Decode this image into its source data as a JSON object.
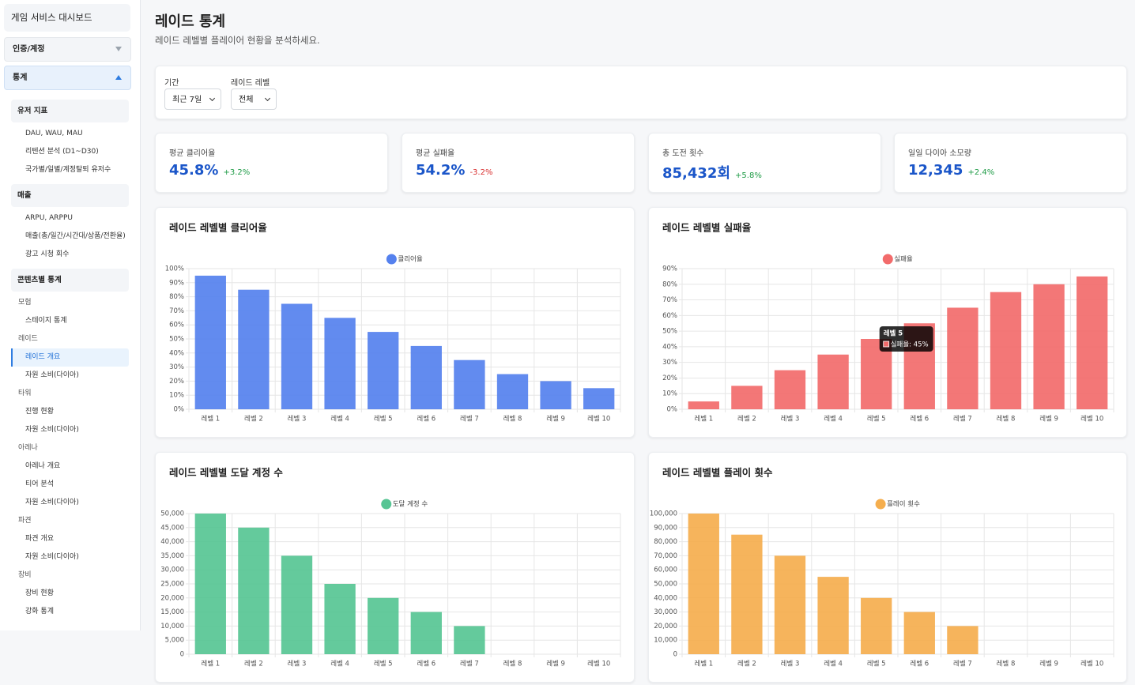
{
  "sidebar": {
    "title": "게임 서비스 대시보드",
    "sections": [
      {
        "label": "인증/계정"
      },
      {
        "label": "통계",
        "groups": [
          {
            "label": "유저 지표",
            "items": [
              {
                "label": "DAU, WAU, MAU"
              },
              {
                "label": "리텐션 분석 (D1~D30)"
              },
              {
                "label": "국가별/일별/계정탈퇴 유저수"
              }
            ]
          },
          {
            "label": "매출",
            "items": [
              {
                "label": "ARPU, ARPPU"
              },
              {
                "label": "매출(총/일간/시간대/상품/전환율)"
              },
              {
                "label": "광고 시청 회수"
              }
            ]
          },
          {
            "label": "콘텐츠별 통계",
            "subgroups": [
              {
                "label": "모험",
                "items": [
                  {
                    "label": "스테이지 통계"
                  }
                ]
              },
              {
                "label": "레이드",
                "items": [
                  {
                    "label": "레이드 개요",
                    "selected": true
                  },
                  {
                    "label": "자원 소비(다이아)"
                  }
                ]
              },
              {
                "label": "타워",
                "items": [
                  {
                    "label": "진행 현황"
                  },
                  {
                    "label": "자원 소비(다이아)"
                  }
                ]
              },
              {
                "label": "아레나",
                "items": [
                  {
                    "label": "아레나 개요"
                  },
                  {
                    "label": "티어 분석"
                  },
                  {
                    "label": "자원 소비(다이아)"
                  }
                ]
              },
              {
                "label": "파견",
                "items": [
                  {
                    "label": "파견 개요"
                  },
                  {
                    "label": "자원 소비(다이아)"
                  }
                ]
              },
              {
                "label": "장비",
                "items": [
                  {
                    "label": "장비 현황"
                  },
                  {
                    "label": "강화 통계"
                  }
                ]
              }
            ]
          }
        ]
      }
    ]
  },
  "header": {
    "title": "레이드 통계",
    "subtitle": "레이드 레벨별 플레이어 현황을 분석하세요."
  },
  "filters": [
    {
      "label": "기간",
      "value": "최근 7일"
    },
    {
      "label": "레이드 레벨",
      "value": "전체"
    }
  ],
  "kpis": [
    {
      "label": "평균 클리어율",
      "value": "45.8%",
      "change": "+3.2%"
    },
    {
      "label": "평균 실패율",
      "value": "54.2%",
      "change": "-3.2%"
    },
    {
      "label": "총 도전 횟수",
      "value": "85,432회",
      "change": "+5.8%"
    },
    {
      "label": "일일 다이아 소모량",
      "value": "12,345",
      "change": "+2.4%"
    }
  ],
  "chart_data": [
    {
      "type": "bar",
      "title": "레이드 레벨별 클리어율",
      "categories": [
        "레벨 1",
        "레벨 2",
        "레벨 3",
        "레벨 4",
        "레벨 5",
        "레벨 6",
        "레벨 7",
        "레벨 8",
        "레벨 9",
        "레벨 10"
      ],
      "series": [
        {
          "name": "클리어율",
          "color": "#5581ee",
          "values": [
            95,
            85,
            75,
            65,
            55,
            45,
            35,
            25,
            20,
            15
          ]
        }
      ],
      "ylim": [
        0,
        100
      ],
      "yticks": [
        {
          "value": 0,
          "label": "0%"
        },
        {
          "value": 10,
          "label": "10%"
        },
        {
          "value": 20,
          "label": "20%"
        },
        {
          "value": 30,
          "label": "30%"
        },
        {
          "value": 40,
          "label": "40%"
        },
        {
          "value": 50,
          "label": "50%"
        },
        {
          "value": 60,
          "label": "60%"
        },
        {
          "value": 70,
          "label": "70%"
        },
        {
          "value": 80,
          "label": "80%"
        },
        {
          "value": 90,
          "label": "90%"
        },
        {
          "value": 100,
          "label": "100%"
        }
      ],
      "grid": true,
      "legend": "top"
    },
    {
      "type": "bar",
      "title": "레이드 레벨별 실패율",
      "categories": [
        "레벨 1",
        "레벨 2",
        "레벨 3",
        "레벨 4",
        "레벨 5",
        "레벨 6",
        "레벨 7",
        "레벨 8",
        "레벨 9",
        "레벨 10"
      ],
      "series": [
        {
          "name": "실패율",
          "color": "#f26b6b",
          "values": [
            5,
            15,
            25,
            35,
            45,
            55,
            65,
            75,
            80,
            85
          ]
        }
      ],
      "ylim": [
        0,
        90
      ],
      "yticks": [
        {
          "value": 0,
          "label": "0%"
        },
        {
          "value": 10,
          "label": "10%"
        },
        {
          "value": 20,
          "label": "20%"
        },
        {
          "value": 30,
          "label": "30%"
        },
        {
          "value": 40,
          "label": "40%"
        },
        {
          "value": 50,
          "label": "50%"
        },
        {
          "value": 60,
          "label": "60%"
        },
        {
          "value": 70,
          "label": "70%"
        },
        {
          "value": 80,
          "label": "80%"
        },
        {
          "value": 90,
          "label": "90%"
        }
      ],
      "grid": true,
      "legend": "top",
      "tooltip": {
        "title": "레벨 5",
        "text": "실패율: 45%"
      }
    },
    {
      "type": "bar",
      "title": "레이드 레벨별 도달 계정 수",
      "categories": [
        "레벨 1",
        "레벨 2",
        "레벨 3",
        "레벨 4",
        "레벨 5",
        "레벨 6",
        "레벨 7",
        "레벨 8",
        "레벨 9",
        "레벨 10"
      ],
      "series": [
        {
          "name": "도달 계정 수",
          "color": "#57c594",
          "values": [
            50000,
            45000,
            35000,
            25000,
            20000,
            15000,
            10000,
            null,
            null,
            null
          ]
        }
      ],
      "ylim": [
        0,
        50000
      ],
      "yticks": [
        0,
        {
          "value": 5000,
          "label": "5,000"
        },
        {
          "value": 10000,
          "label": "10,000"
        },
        {
          "value": 15000,
          "label": "15,000"
        },
        {
          "value": 20000,
          "label": "20,000"
        },
        {
          "value": 25000,
          "label": "25,000"
        },
        {
          "value": 30000,
          "label": "30,000"
        },
        {
          "value": 35000,
          "label": "35,000"
        },
        {
          "value": 40000,
          "label": "40,000"
        },
        {
          "value": 45000,
          "label": "45,000"
        },
        {
          "value": 50000,
          "label": "50,000"
        }
      ],
      "grid": true,
      "legend": "top"
    },
    {
      "type": "bar",
      "title": "레이드 레벨별 플레이 횟수",
      "categories": [
        "레벨 1",
        "레벨 2",
        "레벨 3",
        "레벨 4",
        "레벨 5",
        "레벨 6",
        "레벨 7",
        "레벨 8",
        "레벨 9",
        "레벨 10"
      ],
      "series": [
        {
          "name": "플레이 횟수",
          "color": "#f5ae4e",
          "values": [
            100000,
            85000,
            70000,
            55000,
            40000,
            30000,
            20000,
            null,
            null,
            null
          ]
        }
      ],
      "ylim": [
        0,
        100000
      ],
      "yticks": [
        0,
        {
          "value": 10000,
          "label": "10,000"
        },
        {
          "value": 20000,
          "label": "20,000"
        },
        {
          "value": 30000,
          "label": "30,000"
        },
        {
          "value": 40000,
          "label": "40,000"
        },
        {
          "value": 50000,
          "label": "50,000"
        },
        {
          "value": 60000,
          "label": "60,000"
        },
        {
          "value": 70000,
          "label": "70,000"
        },
        {
          "value": 80000,
          "label": "80,000"
        },
        {
          "value": 90000,
          "label": "90,000"
        },
        {
          "value": 100000,
          "label": "100,000"
        }
      ],
      "grid": true,
      "legend": "top"
    }
  ]
}
